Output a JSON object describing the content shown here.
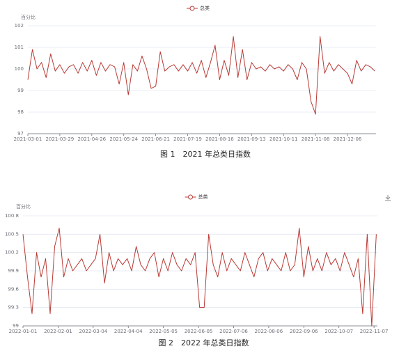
{
  "chart_data": [
    {
      "type": "line",
      "legend": "总类",
      "y_label": "百分比",
      "caption": "图 1　2021 年总类日指数",
      "grid": true,
      "x": [
        "2021-03-01",
        "2021-03-05",
        "2021-03-09",
        "2021-03-13",
        "2021-03-17",
        "2021-03-21",
        "2021-03-25",
        "2021-03-29",
        "2021-04-02",
        "2021-04-06",
        "2021-04-10",
        "2021-04-14",
        "2021-04-18",
        "2021-04-22",
        "2021-04-26",
        "2021-04-30",
        "2021-05-04",
        "2021-05-08",
        "2021-05-12",
        "2021-05-16",
        "2021-05-20",
        "2021-05-24",
        "2021-05-28",
        "2021-06-01",
        "2021-06-05",
        "2021-06-09",
        "2021-06-13",
        "2021-06-17",
        "2021-06-21",
        "2021-06-25",
        "2021-06-29",
        "2021-07-03",
        "2021-07-07",
        "2021-07-11",
        "2021-07-15",
        "2021-07-19",
        "2021-07-23",
        "2021-07-27",
        "2021-07-31",
        "2021-08-04",
        "2021-08-08",
        "2021-08-12",
        "2021-08-16",
        "2021-08-20",
        "2021-08-24",
        "2021-08-28",
        "2021-09-01",
        "2021-09-05",
        "2021-09-09",
        "2021-09-13",
        "2021-09-17",
        "2021-09-21",
        "2021-09-25",
        "2021-09-29",
        "2021-10-03",
        "2021-10-07",
        "2021-10-11",
        "2021-10-15",
        "2021-10-19",
        "2021-10-23",
        "2021-10-27",
        "2021-10-31",
        "2021-11-04",
        "2021-11-08",
        "2021-11-12",
        "2021-11-16",
        "2021-11-20",
        "2021-11-24",
        "2021-11-28",
        "2021-12-02",
        "2021-12-06",
        "2021-12-10",
        "2021-12-14",
        "2021-12-18",
        "2021-12-22",
        "2021-12-26",
        "2021-12-30"
      ],
      "series": [
        {
          "name": "总类",
          "color": "#b83a34",
          "values": [
            99.5,
            100.9,
            100.0,
            100.3,
            99.6,
            100.7,
            99.9,
            100.2,
            99.8,
            100.1,
            100.2,
            99.8,
            100.3,
            99.9,
            100.4,
            99.7,
            100.3,
            99.9,
            100.2,
            100.1,
            99.3,
            100.3,
            98.8,
            100.2,
            99.9,
            100.6,
            100.0,
            99.1,
            99.2,
            100.8,
            99.9,
            100.1,
            100.2,
            99.9,
            100.2,
            99.9,
            100.3,
            99.8,
            100.4,
            99.6,
            100.3,
            101.1,
            99.5,
            100.4,
            99.7,
            101.5,
            99.6,
            100.9,
            99.5,
            100.3,
            100.0,
            100.1,
            99.9,
            100.2,
            100.0,
            100.1,
            99.9,
            100.2,
            100.0,
            99.5,
            100.3,
            100.0,
            98.5,
            97.9,
            101.5,
            99.8,
            100.3,
            99.9,
            100.2,
            100.0,
            99.8,
            99.3,
            100.4,
            99.9,
            100.2,
            100.1,
            99.9
          ]
        }
      ],
      "xlim": [
        "2021-03-01",
        "2021-12-31"
      ],
      "xticks": [
        "2021-03-01",
        "2021-03-29",
        "2021-04-26",
        "2021-05-24",
        "2021-06-21",
        "2021-07-19",
        "2021-08-16",
        "2021-09-13",
        "2021-10-11",
        "2021-11-08",
        "2021-12-06"
      ],
      "ylim": [
        97,
        102
      ],
      "yticks": [
        97,
        98,
        99,
        100,
        101,
        102
      ]
    },
    {
      "type": "line",
      "legend": "总类",
      "y_label": "百分比",
      "caption": "图 2　2022 年总类日指数",
      "grid": true,
      "x": [
        "2022-01-01",
        "2022-01-05",
        "2022-01-09",
        "2022-01-13",
        "2022-01-17",
        "2022-01-21",
        "2022-01-25",
        "2022-01-29",
        "2022-02-02",
        "2022-02-06",
        "2022-02-10",
        "2022-02-14",
        "2022-02-18",
        "2022-02-22",
        "2022-02-26",
        "2022-03-02",
        "2022-03-06",
        "2022-03-10",
        "2022-03-14",
        "2022-03-18",
        "2022-03-22",
        "2022-03-26",
        "2022-03-30",
        "2022-04-03",
        "2022-04-07",
        "2022-04-11",
        "2022-04-15",
        "2022-04-19",
        "2022-04-23",
        "2022-04-27",
        "2022-05-01",
        "2022-05-05",
        "2022-05-09",
        "2022-05-13",
        "2022-05-17",
        "2022-05-21",
        "2022-05-25",
        "2022-05-29",
        "2022-06-02",
        "2022-06-06",
        "2022-06-10",
        "2022-06-14",
        "2022-06-18",
        "2022-06-22",
        "2022-06-26",
        "2022-06-30",
        "2022-07-04",
        "2022-07-08",
        "2022-07-12",
        "2022-07-16",
        "2022-07-20",
        "2022-07-24",
        "2022-07-28",
        "2022-08-01",
        "2022-08-05",
        "2022-08-09",
        "2022-08-13",
        "2022-08-17",
        "2022-08-21",
        "2022-08-25",
        "2022-08-29",
        "2022-09-02",
        "2022-09-06",
        "2022-09-10",
        "2022-09-14",
        "2022-09-18",
        "2022-09-22",
        "2022-09-26",
        "2022-09-30",
        "2022-10-04",
        "2022-10-08",
        "2022-10-12",
        "2022-10-16",
        "2022-10-20",
        "2022-10-24",
        "2022-10-28",
        "2022-11-01",
        "2022-11-05",
        "2022-11-09"
      ],
      "series": [
        {
          "name": "总类",
          "color": "#b83a34",
          "values": [
            100.5,
            99.8,
            99.2,
            100.2,
            99.8,
            100.1,
            99.2,
            100.3,
            100.6,
            99.8,
            100.1,
            99.9,
            100.0,
            100.1,
            99.9,
            100.0,
            100.1,
            100.5,
            99.7,
            100.2,
            99.9,
            100.1,
            100.0,
            100.1,
            99.9,
            100.3,
            100.0,
            99.9,
            100.1,
            100.2,
            99.8,
            100.1,
            99.9,
            100.2,
            100.0,
            99.9,
            100.1,
            100.0,
            100.2,
            99.3,
            99.3,
            100.5,
            100.0,
            99.8,
            100.2,
            99.9,
            100.1,
            100.0,
            99.9,
            100.2,
            100.0,
            99.8,
            100.1,
            100.2,
            99.9,
            100.1,
            100.0,
            99.9,
            100.2,
            99.9,
            100.0,
            100.6,
            99.8,
            100.3,
            99.9,
            100.1,
            99.9,
            100.2,
            100.0,
            100.1,
            99.9,
            100.2,
            100.0,
            99.8,
            100.1,
            99.2,
            100.5,
            99.0,
            100.5
          ]
        }
      ],
      "xlim": [
        "2022-01-01",
        "2022-11-10"
      ],
      "xticks": [
        "2022-01-01",
        "2022-02-01",
        "2022-03-04",
        "2022-04-04",
        "2022-05-05",
        "2022-06-05",
        "2022-07-06",
        "2022-08-06",
        "2022-09-06",
        "2022-10-07",
        "2022-11-07"
      ],
      "ylim": [
        99,
        100.8
      ],
      "yticks": [
        99,
        99.3,
        99.6,
        99.9,
        100.2,
        100.5,
        100.8
      ]
    }
  ]
}
